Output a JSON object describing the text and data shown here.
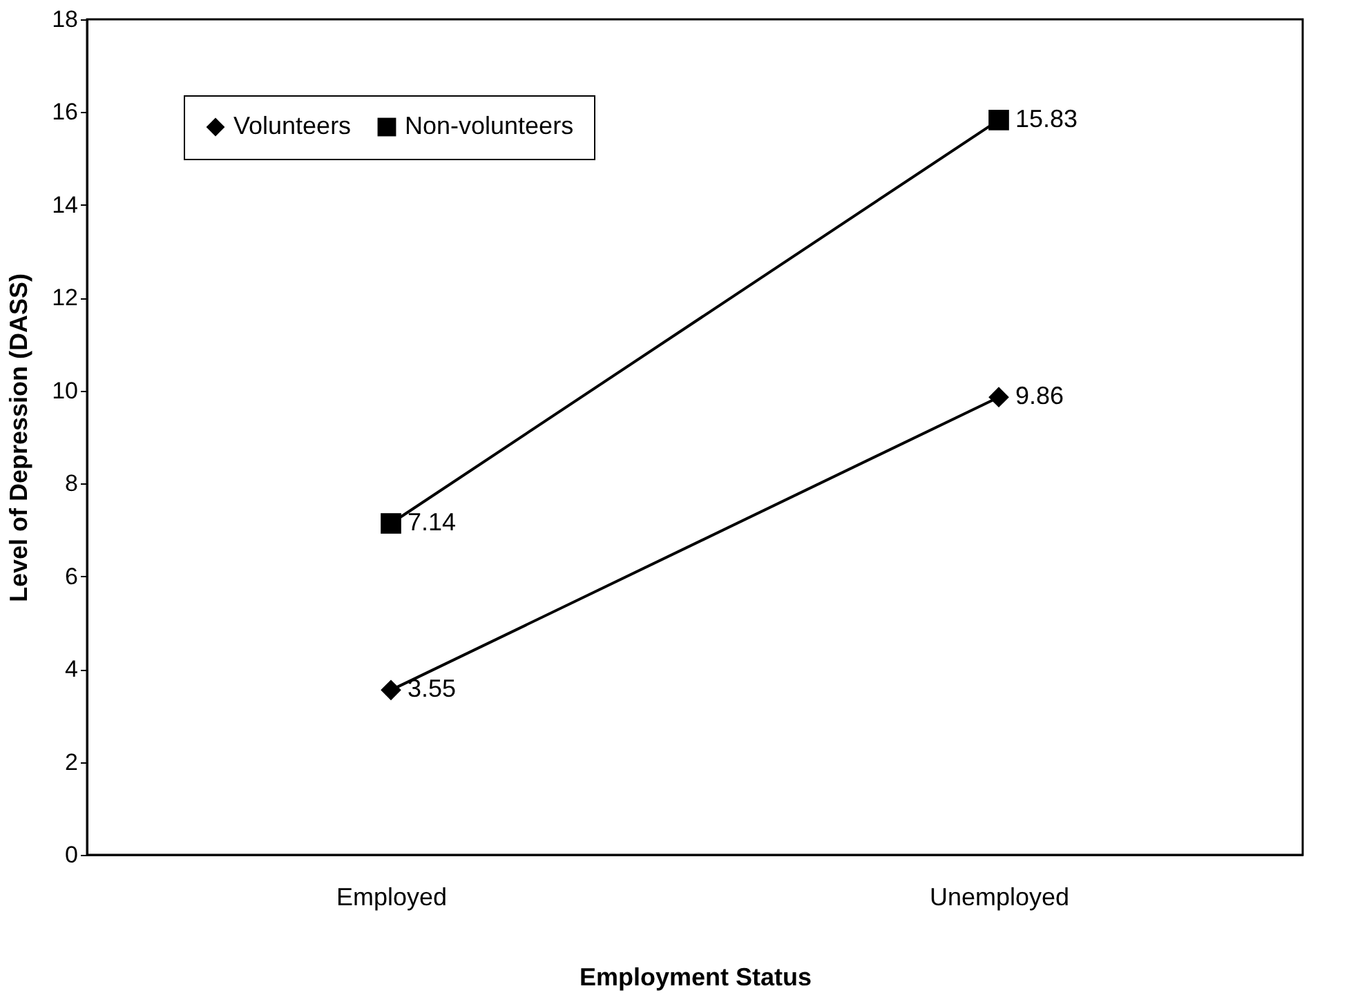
{
  "chart_data": {
    "type": "line",
    "xlabel": "Employment Status",
    "ylabel": "Level of Depression (DASS)",
    "categories": [
      "Employed",
      "Unemployed"
    ],
    "series": [
      {
        "name": "Volunteers",
        "color": "#000000",
        "marker": "diamond",
        "values": [
          3.55,
          9.86
        ]
      },
      {
        "name": "Non-volunteers",
        "color": "#000000",
        "marker": "square",
        "values": [
          7.14,
          15.83
        ]
      }
    ],
    "ylim": [
      0,
      18
    ],
    "yticks": [
      0,
      2,
      4,
      6,
      8,
      10,
      12,
      14,
      16,
      18
    ],
    "grid": false,
    "legend": "top left",
    "data_labels": true,
    "line_style": "solid"
  }
}
